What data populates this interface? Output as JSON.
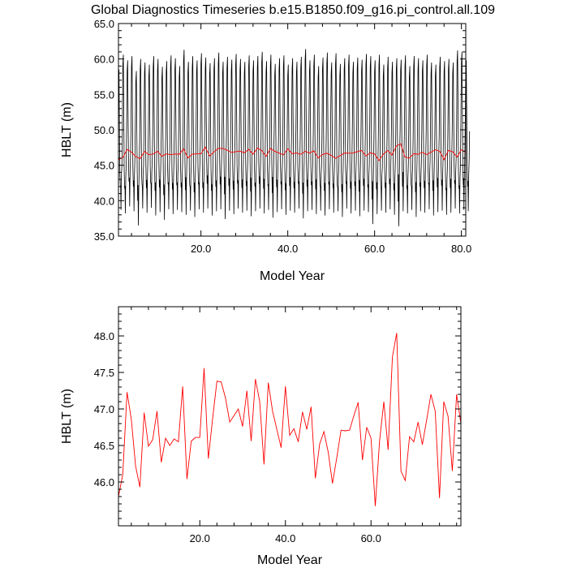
{
  "title": "Global Diagnostics Timeseries b.e15.B1850.f09_g16.pi_control.all.109",
  "chart_data": [
    {
      "type": "line",
      "xlabel": "Model Year",
      "ylabel": "HBLT (m)",
      "xlim": [
        1,
        81
      ],
      "ylim": [
        35,
        65
      ],
      "x_ticks": [
        20,
        40,
        60,
        80
      ],
      "x_tick_labels": [
        "20.0",
        "40.0",
        "60.0",
        "80.0"
      ],
      "y_ticks": [
        35,
        40,
        45,
        50,
        55,
        60,
        65
      ],
      "y_tick_labels": [
        "35.0",
        "40.0",
        "45.0",
        "50.0",
        "55.0",
        "60.0",
        "65.0"
      ],
      "grid": false,
      "series": [
        {
          "color": "#000000",
          "description": "monthly values; each model year oscillates between winter maxima (~58-61.5 m) and summer minima (~36.5-39.5 m)",
          "annual_maxima": [
            58.5,
            60.6,
            59.8,
            60.4,
            58.3,
            60.0,
            59.5,
            59.2,
            60.4,
            60.0,
            58.9,
            59.7,
            60.5,
            60.1,
            59.0,
            61.3,
            59.6,
            60.4,
            59.8,
            60.8,
            60.2,
            59.4,
            60.1,
            60.9,
            59.6,
            60.3,
            59.9,
            60.7,
            60.0,
            59.6,
            60.5,
            59.8,
            60.4,
            61.0,
            59.7,
            60.6,
            59.3,
            60.1,
            60.5,
            59.2,
            60.1,
            59.6,
            60.3,
            61.4,
            59.8,
            60.6,
            59.0,
            60.2,
            60.9,
            59.5,
            60.8,
            59.3,
            60.1,
            60.6,
            59.6,
            60.2,
            59.9,
            60.7,
            60.4,
            59.8,
            60.6,
            59.2,
            60.3,
            59.6,
            60.1,
            59.9,
            60.5,
            59.0,
            60.4,
            60.1,
            59.8,
            60.6,
            59.5,
            59.2,
            60.3,
            59.7,
            60.0,
            59.5,
            61.2,
            61.0,
            59.8
          ],
          "annual_minima": [
            38.7,
            38.2,
            39.2,
            38.5,
            36.5,
            38.9,
            38.3,
            39.0,
            37.9,
            38.4,
            37.3,
            38.8,
            38.1,
            38.7,
            38.4,
            38.0,
            38.6,
            37.7,
            38.8,
            38.3,
            38.9,
            37.9,
            38.5,
            38.8,
            37.4,
            38.6,
            38.1,
            38.9,
            38.3,
            38.6,
            37.8,
            38.5,
            38.9,
            38.2,
            38.7,
            37.6,
            38.4,
            38.8,
            38.0,
            38.6,
            38.3,
            38.9,
            37.5,
            38.5,
            38.7,
            38.1,
            38.6,
            37.9,
            38.8,
            38.3,
            38.5,
            37.7,
            38.9,
            38.2,
            38.6,
            37.8,
            38.6,
            38.4,
            36.7,
            38.1,
            38.6,
            38.3,
            38.8,
            38.0,
            36.4,
            38.5,
            38.2,
            38.7,
            37.7,
            38.5,
            38.3,
            38.8,
            37.9,
            38.4,
            38.6,
            38.0,
            38.3,
            38.9,
            38.2,
            38.7,
            38.5
          ]
        },
        {
          "color": "#ff0000",
          "description": "annual means",
          "x": [
            1,
            2,
            3,
            4,
            5,
            6,
            7,
            8,
            9,
            10,
            11,
            12,
            13,
            14,
            15,
            16,
            17,
            18,
            19,
            20,
            21,
            22,
            23,
            24,
            25,
            26,
            27,
            28,
            29,
            30,
            31,
            32,
            33,
            34,
            35,
            36,
            37,
            38,
            39,
            40,
            41,
            42,
            43,
            44,
            45,
            46,
            47,
            48,
            49,
            50,
            51,
            52,
            53,
            54,
            55,
            56,
            57,
            58,
            59,
            60,
            61,
            62,
            63,
            64,
            65,
            66,
            67,
            68,
            69,
            70,
            71,
            72,
            73,
            74,
            75,
            76,
            77,
            78,
            79,
            80,
            81
          ],
          "values": [
            45.8,
            46.1,
            47.23,
            46.86,
            46.22,
            45.93,
            46.95,
            46.49,
            46.58,
            46.97,
            46.27,
            46.6,
            46.5,
            46.59,
            46.55,
            47.31,
            46.04,
            46.56,
            46.61,
            46.61,
            47.56,
            46.32,
            46.87,
            47.38,
            47.37,
            47.15,
            46.82,
            46.91,
            47.0,
            46.76,
            47.25,
            46.56,
            47.41,
            47.1,
            46.24,
            47.36,
            46.97,
            46.72,
            46.47,
            47.31,
            46.64,
            46.73,
            46.55,
            46.96,
            46.72,
            47.03,
            46.05,
            46.52,
            46.69,
            46.41,
            45.98,
            46.33,
            46.71,
            46.7,
            46.71,
            46.91,
            47.09,
            46.3,
            46.75,
            46.6,
            45.67,
            46.56,
            47.1,
            46.44,
            47.71,
            48.04,
            46.15,
            46.02,
            46.62,
            46.55,
            46.82,
            46.51,
            46.85,
            47.2,
            46.97,
            45.78,
            47.1,
            46.9,
            46.15,
            47.2,
            46.8
          ]
        }
      ]
    },
    {
      "type": "line",
      "xlabel": "Model Year",
      "ylabel": "HBLT (m)",
      "xlim": [
        1,
        81
      ],
      "ylim": [
        45.4,
        48.4
      ],
      "x_ticks": [
        20,
        40,
        60
      ],
      "x_tick_labels": [
        "20.0",
        "40.0",
        "60.0"
      ],
      "y_ticks": [
        46.0,
        46.5,
        47.0,
        47.5,
        48.0
      ],
      "y_tick_labels": [
        "46.0",
        "46.5",
        "47.0",
        "47.5",
        "48.0"
      ],
      "grid": false,
      "series": [
        {
          "color": "#ff0000",
          "description": "annual means",
          "x": [
            1,
            2,
            3,
            4,
            5,
            6,
            7,
            8,
            9,
            10,
            11,
            12,
            13,
            14,
            15,
            16,
            17,
            18,
            19,
            20,
            21,
            22,
            23,
            24,
            25,
            26,
            27,
            28,
            29,
            30,
            31,
            32,
            33,
            34,
            35,
            36,
            37,
            38,
            39,
            40,
            41,
            42,
            43,
            44,
            45,
            46,
            47,
            48,
            49,
            50,
            51,
            52,
            53,
            54,
            55,
            56,
            57,
            58,
            59,
            60,
            61,
            62,
            63,
            64,
            65,
            66,
            67,
            68,
            69,
            70,
            71,
            72,
            73,
            74,
            75,
            76,
            77,
            78,
            79,
            80,
            81
          ],
          "values": [
            45.8,
            46.1,
            47.23,
            46.86,
            46.22,
            45.93,
            46.95,
            46.49,
            46.58,
            46.97,
            46.27,
            46.6,
            46.5,
            46.59,
            46.55,
            47.31,
            46.04,
            46.56,
            46.61,
            46.61,
            47.56,
            46.32,
            46.87,
            47.38,
            47.37,
            47.15,
            46.82,
            46.91,
            47.0,
            46.76,
            47.25,
            46.56,
            47.41,
            47.1,
            46.24,
            47.36,
            46.97,
            46.72,
            46.47,
            47.31,
            46.64,
            46.73,
            46.55,
            46.96,
            46.72,
            47.03,
            46.05,
            46.52,
            46.69,
            46.41,
            45.98,
            46.33,
            46.71,
            46.7,
            46.71,
            46.91,
            47.09,
            46.3,
            46.75,
            46.6,
            45.67,
            46.56,
            47.1,
            46.44,
            47.71,
            48.04,
            46.15,
            46.02,
            46.62,
            46.55,
            46.82,
            46.51,
            46.85,
            47.2,
            46.97,
            45.78,
            47.1,
            46.9,
            46.15,
            47.2,
            46.8
          ]
        }
      ]
    }
  ]
}
